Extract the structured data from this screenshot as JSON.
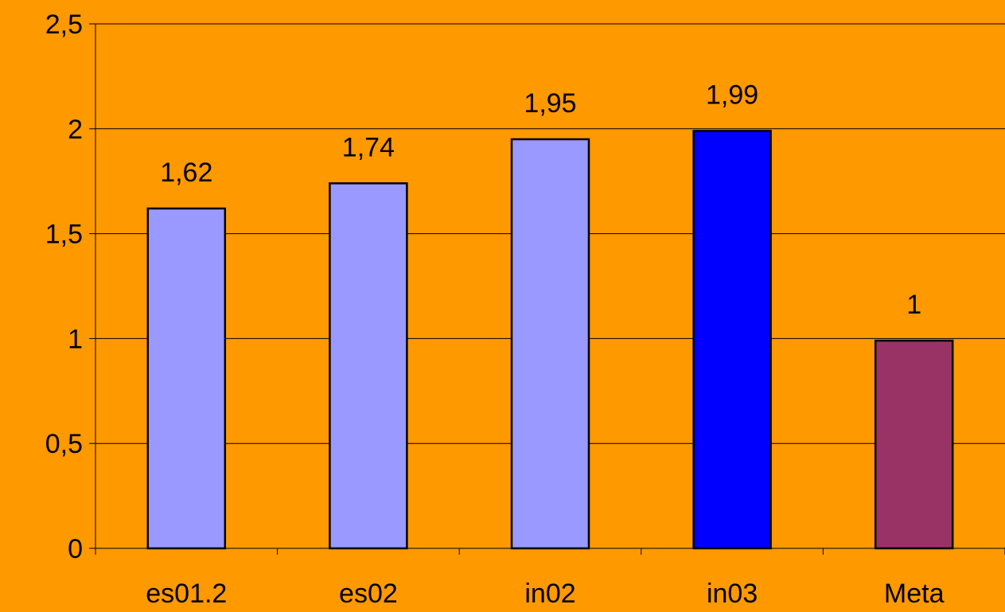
{
  "chart_data": {
    "type": "bar",
    "categories": [
      "es01.2",
      "es02",
      "in02",
      "in03",
      "Meta"
    ],
    "values": [
      1.62,
      1.74,
      1.95,
      1.99,
      0.99
    ],
    "data_labels": [
      "1,62",
      "1,74",
      "1,95",
      "1,99",
      "1"
    ],
    "bar_colors": [
      "#9999FF",
      "#9999FF",
      "#9999FF",
      "#0000FF",
      "#993366"
    ],
    "ylim": [
      0,
      2.5
    ],
    "yticks": [
      0,
      0.5,
      1,
      1.5,
      2,
      2.5
    ],
    "ytick_labels": [
      "0",
      "0,5",
      "1",
      "1,5",
      "2",
      "2,5"
    ],
    "title": "",
    "xlabel": "",
    "ylabel": "",
    "grid": true,
    "legend": "none"
  },
  "colors": {
    "background": "#FF9900",
    "gridline": "#000000",
    "axis": "#000000",
    "bar_outline": "#000000"
  }
}
